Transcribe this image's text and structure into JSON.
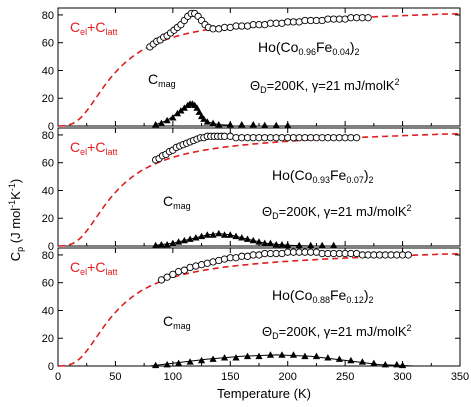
{
  "chart_data": {
    "type": "scatter",
    "shared_x": {
      "label": "Temperature (K)",
      "range": [
        0,
        350
      ],
      "ticks": [
        "0",
        "50",
        "100",
        "150",
        "200",
        "250",
        "300",
        "350"
      ]
    },
    "shared_y_label": "C_p (J mol^-1 K^-1)",
    "colors": {
      "fit_curve": "#e01e1e",
      "markers": "#000000",
      "axes": "#000000"
    },
    "panels": [
      {
        "ylim": [
          0,
          85
        ],
        "yticks": [
          "0",
          "20",
          "40",
          "60",
          "80"
        ],
        "legend_label": "C_el+C_latt",
        "sample": {
          "prefix": "Ho(Co",
          "sub1": "0.96",
          "mid": "Fe",
          "sub2": "0.04",
          "close": ")",
          "sub3": "2"
        },
        "params": "Θ_D=200K, γ=21 mJ/molK²",
        "mag_label": "C_mag",
        "cp_measured": [
          [
            80,
            57
          ],
          [
            83,
            59
          ],
          [
            86,
            61
          ],
          [
            89,
            62
          ],
          [
            92,
            64
          ],
          [
            95,
            65
          ],
          [
            98,
            67
          ],
          [
            101,
            69
          ],
          [
            104,
            71
          ],
          [
            107,
            73
          ],
          [
            110,
            76
          ],
          [
            113,
            79
          ],
          [
            116,
            81
          ],
          [
            119,
            81
          ],
          [
            122,
            79
          ],
          [
            125,
            76
          ],
          [
            128,
            73
          ],
          [
            131,
            71
          ],
          [
            135,
            70
          ],
          [
            140,
            70
          ],
          [
            145,
            71
          ],
          [
            150,
            71
          ],
          [
            155,
            72
          ],
          [
            160,
            72
          ],
          [
            165,
            72
          ],
          [
            170,
            73
          ],
          [
            175,
            73
          ],
          [
            180,
            73
          ],
          [
            185,
            74
          ],
          [
            190,
            74
          ],
          [
            195,
            74
          ],
          [
            200,
            75
          ],
          [
            205,
            75
          ],
          [
            210,
            75
          ],
          [
            215,
            76
          ],
          [
            220,
            76
          ],
          [
            225,
            76
          ],
          [
            230,
            76
          ],
          [
            235,
            77
          ],
          [
            240,
            77
          ],
          [
            245,
            77
          ],
          [
            250,
            77
          ],
          [
            255,
            78
          ],
          [
            260,
            78
          ],
          [
            265,
            78
          ],
          [
            270,
            78
          ]
        ],
        "c_mag": [
          [
            85,
            1
          ],
          [
            90,
            2
          ],
          [
            95,
            4
          ],
          [
            100,
            6
          ],
          [
            104,
            9
          ],
          [
            107,
            11
          ],
          [
            110,
            13
          ],
          [
            113,
            15
          ],
          [
            115,
            16
          ],
          [
            117,
            16
          ],
          [
            119,
            15
          ],
          [
            121,
            13
          ],
          [
            123,
            10
          ],
          [
            125,
            7
          ],
          [
            127,
            5
          ],
          [
            130,
            3
          ],
          [
            135,
            2
          ],
          [
            140,
            1
          ],
          [
            150,
            1
          ],
          [
            160,
            1
          ],
          [
            170,
            1
          ],
          [
            180,
            0.5
          ],
          [
            190,
            0.5
          ],
          [
            200,
            0.5
          ]
        ],
        "c_mag_fit": [
          [
            85,
            1
          ],
          [
            95,
            4
          ],
          [
            105,
            10
          ],
          [
            112,
            15
          ],
          [
            116,
            16
          ],
          [
            120,
            14
          ],
          [
            125,
            8
          ],
          [
            130,
            3
          ],
          [
            140,
            1
          ],
          [
            150,
            0.5
          ]
        ]
      },
      {
        "ylim": [
          0,
          85
        ],
        "yticks": [
          "0",
          "20",
          "40",
          "60",
          "80"
        ],
        "legend_label": "C_el+C_latt",
        "sample": {
          "prefix": "Ho(Co",
          "sub1": "0.93",
          "mid": "Fe",
          "sub2": "0.07",
          "close": ")",
          "sub3": "2"
        },
        "params": "Θ_D=200K, γ=21 mJ/molK²",
        "mag_label": "C_mag",
        "cp_measured": [
          [
            85,
            62
          ],
          [
            88,
            63
          ],
          [
            91,
            65
          ],
          [
            94,
            66
          ],
          [
            97,
            68
          ],
          [
            100,
            69
          ],
          [
            103,
            71
          ],
          [
            106,
            72
          ],
          [
            109,
            73
          ],
          [
            112,
            74
          ],
          [
            115,
            75
          ],
          [
            118,
            76
          ],
          [
            121,
            77
          ],
          [
            124,
            78
          ],
          [
            127,
            78
          ],
          [
            130,
            79
          ],
          [
            133,
            79
          ],
          [
            136,
            79
          ],
          [
            139,
            79
          ],
          [
            142,
            79
          ],
          [
            145,
            79
          ],
          [
            150,
            79
          ],
          [
            155,
            78
          ],
          [
            160,
            78
          ],
          [
            165,
            78
          ],
          [
            170,
            78
          ],
          [
            175,
            78
          ],
          [
            180,
            78
          ],
          [
            185,
            78
          ],
          [
            190,
            78
          ],
          [
            195,
            78
          ],
          [
            200,
            78
          ],
          [
            205,
            78
          ],
          [
            210,
            78
          ],
          [
            215,
            78
          ],
          [
            220,
            78
          ],
          [
            225,
            78
          ],
          [
            230,
            78
          ],
          [
            235,
            78
          ],
          [
            240,
            78
          ],
          [
            245,
            78
          ],
          [
            250,
            78
          ],
          [
            255,
            78
          ],
          [
            260,
            78
          ]
        ],
        "c_mag": [
          [
            85,
            0.5
          ],
          [
            90,
            1
          ],
          [
            95,
            1
          ],
          [
            100,
            2
          ],
          [
            105,
            3
          ],
          [
            110,
            4
          ],
          [
            115,
            5
          ],
          [
            120,
            6
          ],
          [
            125,
            7
          ],
          [
            130,
            8
          ],
          [
            135,
            8
          ],
          [
            140,
            9
          ],
          [
            145,
            8
          ],
          [
            150,
            8
          ],
          [
            155,
            7
          ],
          [
            160,
            6
          ],
          [
            165,
            5
          ],
          [
            170,
            4
          ],
          [
            175,
            3
          ],
          [
            180,
            2
          ],
          [
            185,
            2
          ],
          [
            190,
            1
          ],
          [
            195,
            1
          ],
          [
            200,
            0.5
          ],
          [
            210,
            0.5
          ],
          [
            220,
            0.5
          ],
          [
            230,
            0.5
          ],
          [
            240,
            0.5
          ]
        ],
        "c_mag_fit": [
          [
            85,
            0.5
          ],
          [
            100,
            2
          ],
          [
            115,
            5
          ],
          [
            130,
            8
          ],
          [
            140,
            9
          ],
          [
            150,
            8
          ],
          [
            165,
            5
          ],
          [
            180,
            2
          ],
          [
            200,
            0.5
          ],
          [
            220,
            0
          ]
        ]
      },
      {
        "ylim": [
          0,
          85
        ],
        "yticks": [
          "0",
          "20",
          "40",
          "60",
          "80"
        ],
        "legend_label": "C_el+C_latt",
        "sample": {
          "prefix": "Ho(Co",
          "sub1": "0.88",
          "mid": "Fe",
          "sub2": "0.12",
          "close": ")",
          "sub3": "2"
        },
        "params": "Θ_D=200K, γ=21 mJ/molK²",
        "mag_label": "C_mag",
        "cp_measured": [
          [
            90,
            62
          ],
          [
            95,
            64
          ],
          [
            100,
            66
          ],
          [
            105,
            68
          ],
          [
            110,
            69
          ],
          [
            115,
            71
          ],
          [
            120,
            72
          ],
          [
            125,
            73
          ],
          [
            130,
            74
          ],
          [
            135,
            75
          ],
          [
            140,
            76
          ],
          [
            145,
            77
          ],
          [
            150,
            78
          ],
          [
            155,
            78
          ],
          [
            160,
            79
          ],
          [
            165,
            79
          ],
          [
            170,
            80
          ],
          [
            175,
            80
          ],
          [
            180,
            81
          ],
          [
            185,
            81
          ],
          [
            190,
            81
          ],
          [
            195,
            81
          ],
          [
            200,
            82
          ],
          [
            205,
            82
          ],
          [
            210,
            82
          ],
          [
            215,
            82
          ],
          [
            220,
            82
          ],
          [
            225,
            82
          ],
          [
            230,
            81
          ],
          [
            235,
            81
          ],
          [
            240,
            81
          ],
          [
            245,
            81
          ],
          [
            250,
            81
          ],
          [
            255,
            81
          ],
          [
            260,
            81
          ],
          [
            265,
            80
          ],
          [
            270,
            80
          ],
          [
            275,
            80
          ],
          [
            280,
            80
          ],
          [
            285,
            80
          ],
          [
            290,
            80
          ],
          [
            295,
            80
          ],
          [
            300,
            80
          ],
          [
            305,
            80
          ]
        ],
        "c_mag": [
          [
            85,
            0.5
          ],
          [
            95,
            1
          ],
          [
            105,
            2
          ],
          [
            115,
            3
          ],
          [
            125,
            4
          ],
          [
            135,
            5
          ],
          [
            145,
            6
          ],
          [
            155,
            6
          ],
          [
            165,
            7
          ],
          [
            175,
            7
          ],
          [
            185,
            8
          ],
          [
            195,
            8
          ],
          [
            205,
            8
          ],
          [
            215,
            7
          ],
          [
            225,
            7
          ],
          [
            235,
            6
          ],
          [
            245,
            5
          ],
          [
            255,
            4
          ],
          [
            265,
            3
          ],
          [
            275,
            2
          ],
          [
            285,
            1
          ],
          [
            295,
            1
          ],
          [
            300,
            0.5
          ]
        ],
        "c_mag_fit": [
          [
            80,
            0
          ],
          [
            100,
            2
          ],
          [
            130,
            5
          ],
          [
            160,
            7
          ],
          [
            190,
            8
          ],
          [
            220,
            7
          ],
          [
            250,
            4
          ],
          [
            280,
            1
          ],
          [
            310,
            0
          ]
        ]
      }
    ]
  }
}
